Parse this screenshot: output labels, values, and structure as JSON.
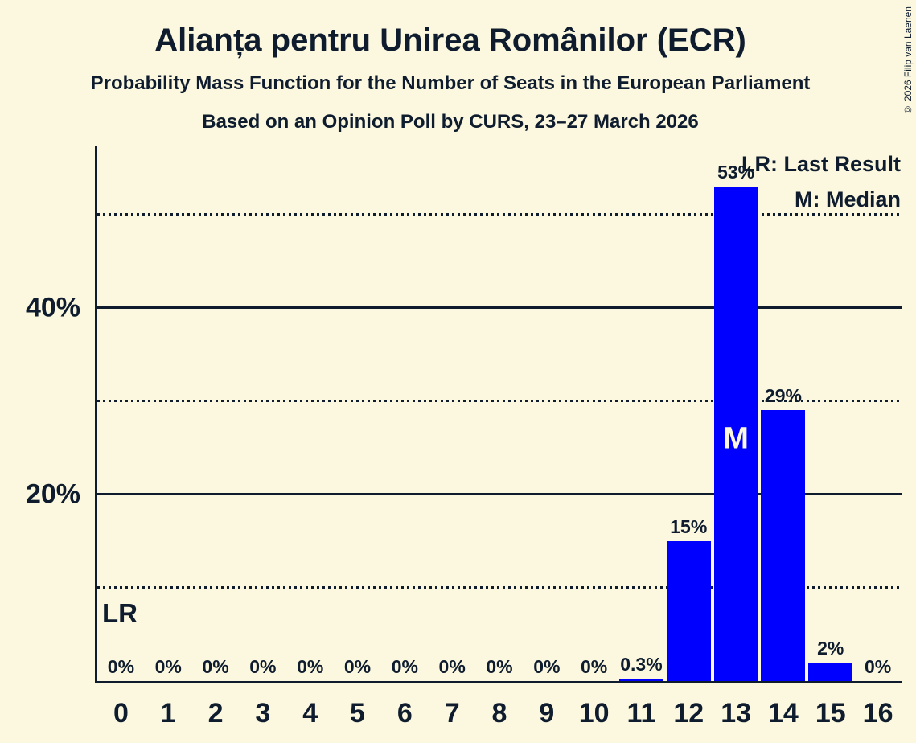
{
  "copyright": "© 2026 Filip van Laenen",
  "chart_data": {
    "type": "bar",
    "title": "Alianța pentru Unirea Românilor (ECR)",
    "subtitle": "Probability Mass Function for the Number of Seats in the European Parliament",
    "source_line": "Based on an Opinion Poll by CURS, 23–27 March 2026",
    "xlabel": "",
    "ylabel": "",
    "categories": [
      "0",
      "1",
      "2",
      "3",
      "4",
      "5",
      "6",
      "7",
      "8",
      "9",
      "10",
      "11",
      "12",
      "13",
      "14",
      "15",
      "16"
    ],
    "values": [
      0,
      0,
      0,
      0,
      0,
      0,
      0,
      0,
      0,
      0,
      0,
      0.3,
      15,
      53,
      29,
      2,
      0
    ],
    "value_labels": [
      "0%",
      "0%",
      "0%",
      "0%",
      "0%",
      "0%",
      "0%",
      "0%",
      "0%",
      "0%",
      "0%",
      "0.3%",
      "15%",
      "53%",
      "29%",
      "2%",
      "0%"
    ],
    "ylim": [
      0,
      57.3
    ],
    "grid": "horizontal",
    "solid_gridlines": [
      20,
      40
    ],
    "dotted_gridlines": [
      10,
      30,
      50
    ],
    "ytick_labels": [
      {
        "value": 40,
        "label": "40%"
      },
      {
        "value": 20,
        "label": "20%"
      }
    ],
    "median": {
      "index": 13,
      "label": "M"
    },
    "last_result": {
      "index": 0,
      "label": "LR"
    },
    "legend": {
      "last_result": "LR: Last Result",
      "median": "M: Median"
    },
    "legend_position": "top-right",
    "colors": {
      "bar": "#0000ff",
      "background": "#fcf8e0",
      "text": "#0e1c2e",
      "median_text": "#fcf8e0"
    }
  }
}
